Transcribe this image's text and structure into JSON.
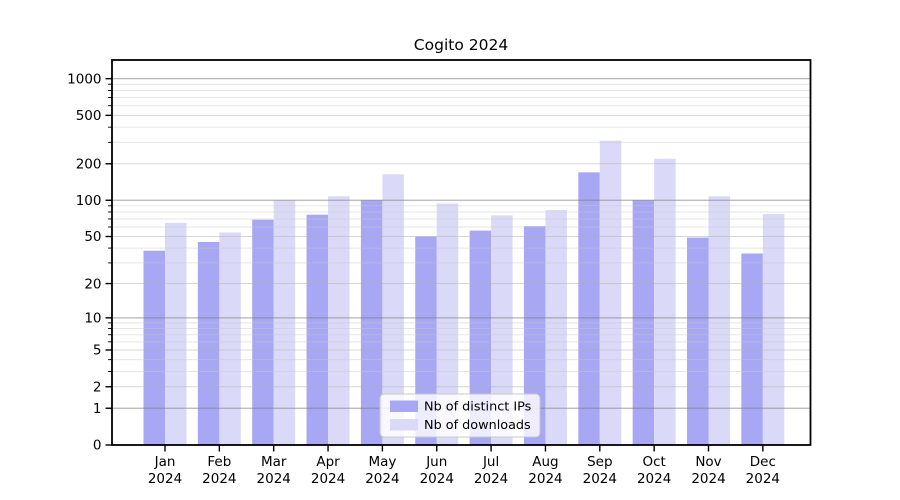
{
  "chart_data": {
    "type": "bar",
    "title": "Cogito 2024",
    "categories": [
      "Jan",
      "Feb",
      "Mar",
      "Apr",
      "May",
      "Jun",
      "Jul",
      "Aug",
      "Sep",
      "Oct",
      "Nov",
      "Dec"
    ],
    "category_year": "2024",
    "series": [
      {
        "name": "Nb of distinct IPs",
        "color": "#a7a7f3",
        "values": [
          38,
          45,
          69,
          76,
          100,
          50,
          56,
          61,
          170,
          100,
          49,
          36
        ]
      },
      {
        "name": "Nb of downloads",
        "color": "#dadaf8",
        "values": [
          65,
          54,
          100,
          108,
          164,
          94,
          75,
          83,
          310,
          220,
          108,
          77
        ]
      }
    ],
    "yscale": "log1p",
    "yticks": [
      0,
      1,
      2,
      5,
      10,
      20,
      50,
      100,
      200,
      500,
      1000
    ],
    "ylim": [
      0,
      1450
    ],
    "xlabel": "",
    "ylabel": "",
    "grid": true,
    "legend_position": "lower center",
    "background": "#ffffff"
  }
}
